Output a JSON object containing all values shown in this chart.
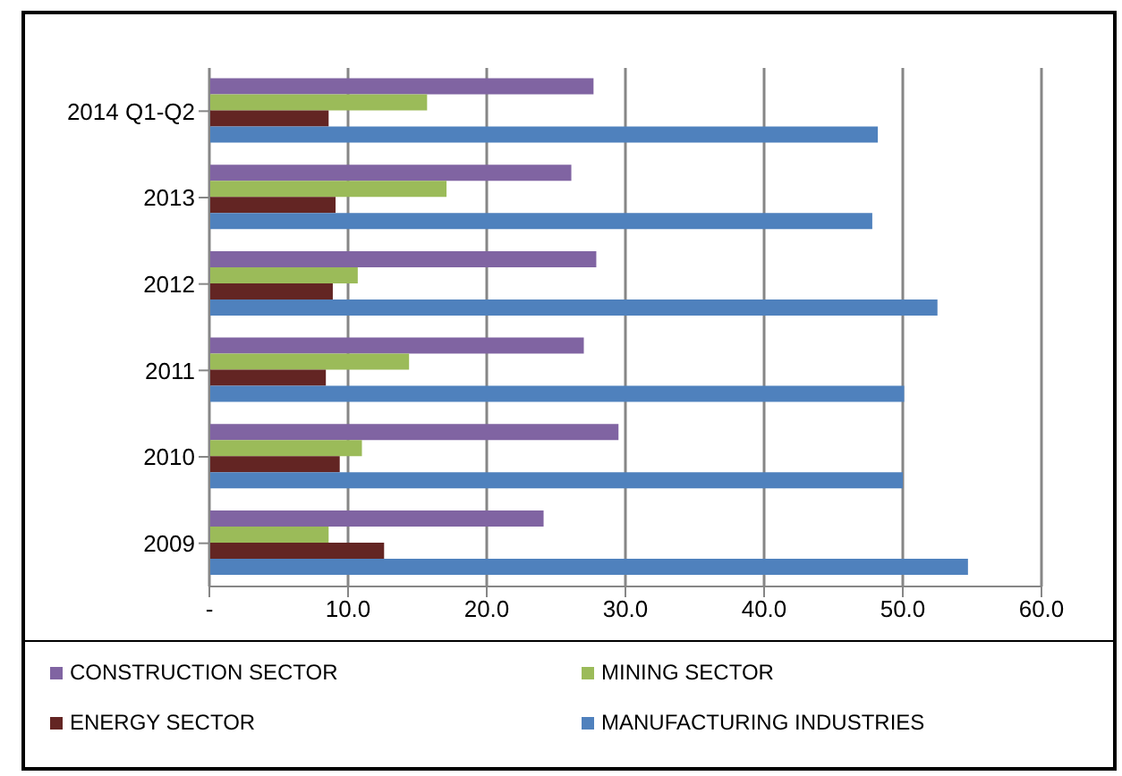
{
  "chart_data": {
    "type": "bar",
    "orientation": "horizontal",
    "categories": [
      "2014 Q1-Q2",
      "2013",
      "2012",
      "2011",
      "2010",
      "2009"
    ],
    "series": [
      {
        "name": "CONSTRUCTION SECTOR",
        "color": "#8064a2",
        "values": [
          27.7,
          26.1,
          27.9,
          27.0,
          29.5,
          24.1
        ]
      },
      {
        "name": "MINING SECTOR",
        "color": "#9bbb59",
        "values": [
          15.7,
          17.1,
          10.7,
          14.4,
          11.0,
          8.6
        ]
      },
      {
        "name": "ENERGY SECTOR",
        "color": "#632523",
        "values": [
          8.6,
          9.1,
          8.9,
          8.4,
          9.4,
          12.6
        ]
      },
      {
        "name": "MANUFACTURING INDUSTRIES",
        "color": "#4f81bd",
        "values": [
          48.2,
          47.8,
          52.5,
          50.1,
          50.0,
          54.7
        ]
      }
    ],
    "xlim": [
      0,
      60
    ],
    "xticks": [
      {
        "value": 0,
        "label": "-"
      },
      {
        "value": 10,
        "label": "10.0"
      },
      {
        "value": 20,
        "label": "20.0"
      },
      {
        "value": 30,
        "label": "30.0"
      },
      {
        "value": 40,
        "label": "40.0"
      },
      {
        "value": 50,
        "label": "50.0"
      },
      {
        "value": 60,
        "label": "60.0"
      }
    ],
    "grid": "x",
    "legend": "bottom"
  }
}
